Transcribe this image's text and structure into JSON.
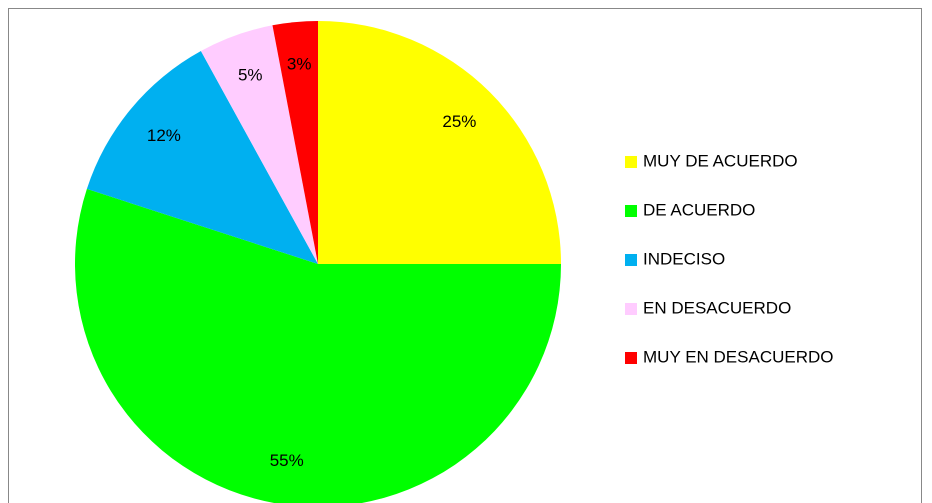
{
  "chart_data": {
    "type": "pie",
    "categories": [
      "MUY DE ACUERDO",
      "DE ACUERDO",
      "INDECISO",
      "EN DESACUERDO",
      "MUY EN DESACUERDO"
    ],
    "values": [
      25,
      55,
      12,
      5,
      3
    ],
    "value_labels": [
      "25%",
      "55%",
      "12%",
      "5%",
      "3%"
    ],
    "colors": [
      "#ffff00",
      "#00ff00",
      "#00b0f0",
      "#ffccff",
      "#ff0000"
    ],
    "legend": "right"
  }
}
